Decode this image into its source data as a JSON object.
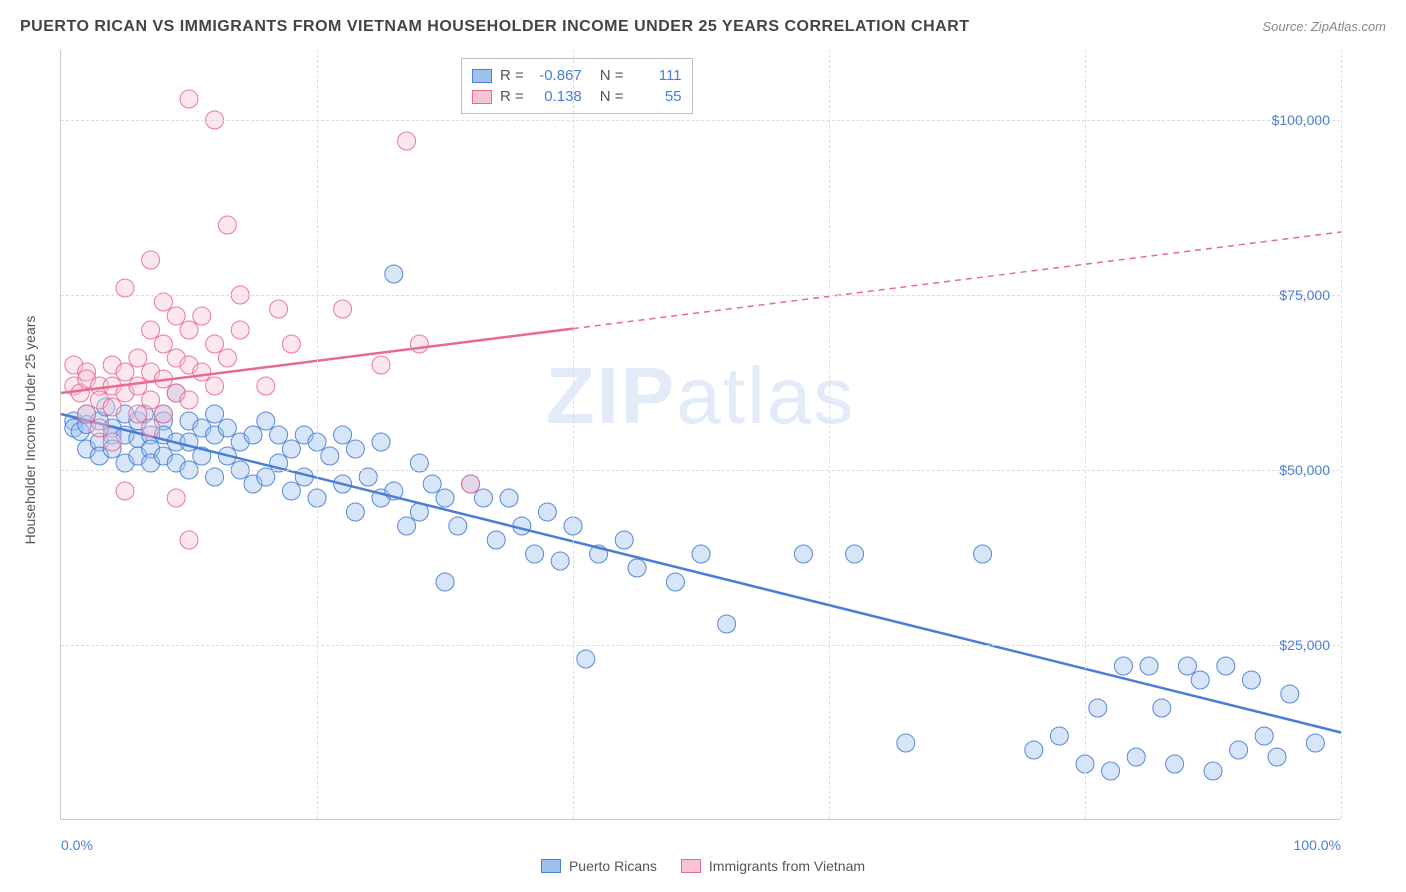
{
  "title": "PUERTO RICAN VS IMMIGRANTS FROM VIETNAM HOUSEHOLDER INCOME UNDER 25 YEARS CORRELATION CHART",
  "source": "Source: ZipAtlas.com",
  "y_axis_label": "Householder Income Under 25 years",
  "watermark_a": "ZIP",
  "watermark_b": "atlas",
  "chart": {
    "type": "scatter",
    "xlim": [
      0,
      100
    ],
    "ylim": [
      0,
      110000
    ],
    "x_ticks": [
      0,
      20,
      40,
      60,
      80,
      100
    ],
    "x_tick_labels": {
      "0": "0.0%",
      "100": "100.0%"
    },
    "y_ticks": [
      25000,
      50000,
      75000,
      100000
    ],
    "y_tick_labels": {
      "25000": "$25,000",
      "50000": "$50,000",
      "75000": "$75,000",
      "100000": "$100,000"
    },
    "grid_color": "#dcdcdc",
    "background_color": "#ffffff",
    "marker_radius": 9,
    "marker_opacity": 0.42,
    "marker_stroke_opacity": 0.9,
    "line_width": 2.5
  },
  "series": [
    {
      "name": "Puerto Ricans",
      "color_fill": "#9dc2ef",
      "color_stroke": "#4a7dd6",
      "R": "-0.867",
      "N": "111",
      "trend": {
        "x1": 0,
        "y1": 58000,
        "x2": 100,
        "y2": 12500,
        "solid_until_x": 100
      },
      "points": [
        [
          1,
          57000
        ],
        [
          1,
          56000
        ],
        [
          1.5,
          55500
        ],
        [
          2,
          56500
        ],
        [
          2,
          53000
        ],
        [
          2,
          58000
        ],
        [
          3,
          57000
        ],
        [
          3,
          54000
        ],
        [
          3,
          52000
        ],
        [
          3.5,
          59000
        ],
        [
          4,
          56000
        ],
        [
          4,
          55000
        ],
        [
          4,
          53000
        ],
        [
          5,
          58000
        ],
        [
          5,
          55000
        ],
        [
          5,
          51000
        ],
        [
          6,
          57000
        ],
        [
          6,
          54500
        ],
        [
          6,
          52000
        ],
        [
          6.5,
          58000
        ],
        [
          7,
          55000
        ],
        [
          7,
          53000
        ],
        [
          7,
          51000
        ],
        [
          8,
          58000
        ],
        [
          8,
          57000
        ],
        [
          8,
          55000
        ],
        [
          8,
          52000
        ],
        [
          9,
          61000
        ],
        [
          9,
          54000
        ],
        [
          9,
          51000
        ],
        [
          10,
          57000
        ],
        [
          10,
          54000
        ],
        [
          10,
          50000
        ],
        [
          11,
          56000
        ],
        [
          11,
          52000
        ],
        [
          12,
          58000
        ],
        [
          12,
          55000
        ],
        [
          12,
          49000
        ],
        [
          13,
          56000
        ],
        [
          13,
          52000
        ],
        [
          14,
          54000
        ],
        [
          14,
          50000
        ],
        [
          15,
          55000
        ],
        [
          15,
          48000
        ],
        [
          16,
          57000
        ],
        [
          16,
          49000
        ],
        [
          17,
          55000
        ],
        [
          17,
          51000
        ],
        [
          18,
          53000
        ],
        [
          18,
          47000
        ],
        [
          19,
          55000
        ],
        [
          19,
          49000
        ],
        [
          20,
          54000
        ],
        [
          20,
          46000
        ],
        [
          21,
          52000
        ],
        [
          22,
          55000
        ],
        [
          22,
          48000
        ],
        [
          23,
          53000
        ],
        [
          23,
          44000
        ],
        [
          24,
          49000
        ],
        [
          25,
          54000
        ],
        [
          25,
          46000
        ],
        [
          26,
          78000
        ],
        [
          26,
          47000
        ],
        [
          27,
          42000
        ],
        [
          28,
          51000
        ],
        [
          28,
          44000
        ],
        [
          29,
          48000
        ],
        [
          30,
          46000
        ],
        [
          30,
          34000
        ],
        [
          31,
          42000
        ],
        [
          32,
          48000
        ],
        [
          33,
          46000
        ],
        [
          34,
          40000
        ],
        [
          35,
          46000
        ],
        [
          36,
          42000
        ],
        [
          37,
          38000
        ],
        [
          38,
          44000
        ],
        [
          39,
          37000
        ],
        [
          40,
          42000
        ],
        [
          41,
          23000
        ],
        [
          42,
          38000
        ],
        [
          44,
          40000
        ],
        [
          45,
          36000
        ],
        [
          48,
          34000
        ],
        [
          50,
          38000
        ],
        [
          52,
          28000
        ],
        [
          58,
          38000
        ],
        [
          62,
          38000
        ],
        [
          66,
          11000
        ],
        [
          72,
          38000
        ],
        [
          76,
          10000
        ],
        [
          78,
          12000
        ],
        [
          80,
          8000
        ],
        [
          81,
          16000
        ],
        [
          82,
          7000
        ],
        [
          83,
          22000
        ],
        [
          84,
          9000
        ],
        [
          85,
          22000
        ],
        [
          86,
          16000
        ],
        [
          87,
          8000
        ],
        [
          88,
          22000
        ],
        [
          89,
          20000
        ],
        [
          90,
          7000
        ],
        [
          91,
          22000
        ],
        [
          92,
          10000
        ],
        [
          93,
          20000
        ],
        [
          94,
          12000
        ],
        [
          95,
          9000
        ],
        [
          96,
          18000
        ],
        [
          98,
          11000
        ]
      ]
    },
    {
      "name": "Immigrants from Vietnam",
      "color_fill": "#f6c5d3",
      "color_stroke": "#e86a92",
      "R": "0.138",
      "N": "55",
      "trend": {
        "x1": 0,
        "y1": 61000,
        "x2": 100,
        "y2": 84000,
        "solid_until_x": 40
      },
      "points": [
        [
          1,
          62000
        ],
        [
          1,
          65000
        ],
        [
          1.5,
          61000
        ],
        [
          2,
          64000
        ],
        [
          2,
          63000
        ],
        [
          2,
          58000
        ],
        [
          3,
          62000
        ],
        [
          3,
          60000
        ],
        [
          3,
          56000
        ],
        [
          4,
          65000
        ],
        [
          4,
          62000
        ],
        [
          4,
          59000
        ],
        [
          4,
          54000
        ],
        [
          5,
          76000
        ],
        [
          5,
          64000
        ],
        [
          5,
          61000
        ],
        [
          5,
          47000
        ],
        [
          6,
          66000
        ],
        [
          6,
          62000
        ],
        [
          6,
          58000
        ],
        [
          7,
          80000
        ],
        [
          7,
          70000
        ],
        [
          7,
          64000
        ],
        [
          7,
          60000
        ],
        [
          7,
          56000
        ],
        [
          8,
          74000
        ],
        [
          8,
          68000
        ],
        [
          8,
          63000
        ],
        [
          8,
          58000
        ],
        [
          9,
          72000
        ],
        [
          9,
          66000
        ],
        [
          9,
          61000
        ],
        [
          9,
          46000
        ],
        [
          10,
          103000
        ],
        [
          10,
          70000
        ],
        [
          10,
          65000
        ],
        [
          10,
          60000
        ],
        [
          10,
          40000
        ],
        [
          11,
          72000
        ],
        [
          11,
          64000
        ],
        [
          12,
          100000
        ],
        [
          12,
          68000
        ],
        [
          12,
          62000
        ],
        [
          13,
          85000
        ],
        [
          13,
          66000
        ],
        [
          14,
          75000
        ],
        [
          14,
          70000
        ],
        [
          16,
          62000
        ],
        [
          17,
          73000
        ],
        [
          18,
          68000
        ],
        [
          22,
          73000
        ],
        [
          25,
          65000
        ],
        [
          27,
          97000
        ],
        [
          28,
          68000
        ],
        [
          32,
          48000
        ]
      ]
    }
  ],
  "bottom_legend": [
    {
      "label": "Puerto Ricans",
      "fill": "#9dc2ef",
      "stroke": "#4a7dd6"
    },
    {
      "label": "Immigrants from Vietnam",
      "fill": "#f6c5d3",
      "stroke": "#e86a92"
    }
  ]
}
